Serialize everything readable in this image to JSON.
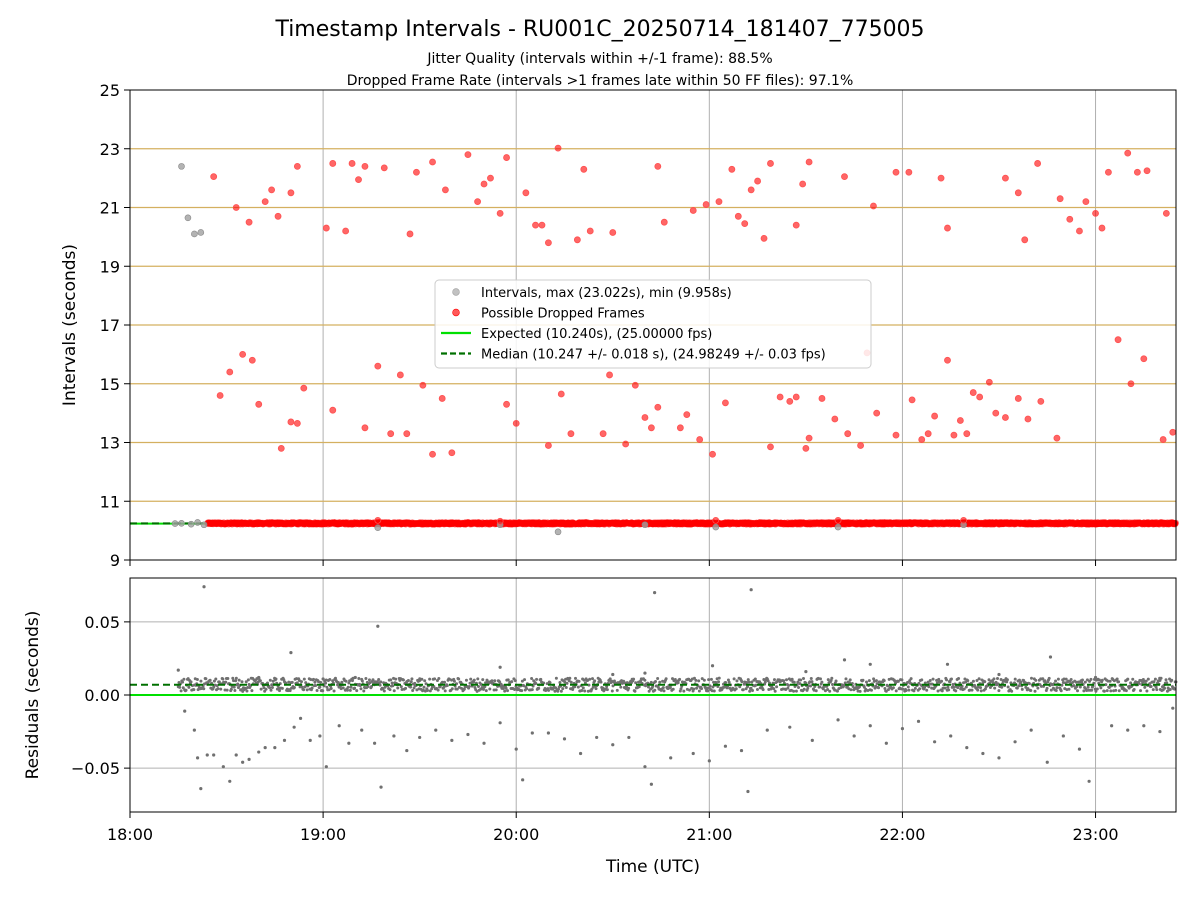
{
  "header": {
    "title": "Timestamp Intervals - RU001C_20250714_181407_775005",
    "subtitle_1": "Jitter Quality (intervals within +/-1 frame): 88.5%",
    "subtitle_2": "Dropped Frame Rate (intervals >1 frames late within 50 FF files): 97.1%"
  },
  "colors": {
    "intervals": "#a0a0a0",
    "dropped": "#ff0000",
    "expected": "#00e000",
    "median": "#007000",
    "residual_points": "#707070",
    "frame_lines": "#d4b060",
    "grid": "#b0b0b0"
  },
  "chart_data": [
    {
      "type": "scatter",
      "id": "intervals",
      "xlabel": "",
      "ylabel": "Intervals (seconds)",
      "xlim": [
        "18:00",
        "23:25"
      ],
      "ylim": [
        9,
        25
      ],
      "yticks": [
        "9",
        "11",
        "13",
        "15",
        "17",
        "19",
        "21",
        "23",
        "25"
      ],
      "grid": true,
      "frame_multiple_lines": [
        11,
        13,
        15,
        17,
        19,
        21,
        23
      ],
      "legend_position": "center",
      "legend": [
        {
          "kind": "marker",
          "label": "Intervals, max (23.022s), min (9.958s)",
          "color": "#a0a0a0"
        },
        {
          "kind": "marker",
          "label": "Possible Dropped Frames",
          "color": "#ff0000"
        },
        {
          "kind": "line",
          "label": "Expected (10.240s), (25.00000 fps)",
          "color": "#00e000"
        },
        {
          "kind": "dashed",
          "label": "Median (10.247 +/- 0.018 s), (24.98249 +/- 0.03 fps)",
          "color": "#007000"
        }
      ],
      "expected_interval": 10.24,
      "median_interval": 10.247,
      "baseline_span": {
        "start": "18:24",
        "end": "23:25",
        "value": 10.247
      },
      "gray_points": [
        [
          "18:16",
          22.4
        ],
        [
          "18:18",
          20.65
        ],
        [
          "18:20",
          20.1
        ],
        [
          "18:22",
          20.15
        ],
        [
          "18:14",
          10.24
        ],
        [
          "18:16",
          10.25
        ],
        [
          "18:19",
          10.22
        ],
        [
          "18:21",
          10.28
        ],
        [
          "18:23",
          10.2
        ],
        [
          "19:17",
          10.1
        ],
        [
          "20:13",
          9.958
        ],
        [
          "21:02",
          10.12
        ],
        [
          "21:40",
          10.12
        ],
        [
          "22:19",
          10.2
        ],
        [
          "19:55",
          10.2
        ],
        [
          "20:40",
          10.2
        ]
      ],
      "red_points": [
        [
          "18:26",
          22.05
        ],
        [
          "18:33",
          21.0
        ],
        [
          "18:37",
          20.5
        ],
        [
          "18:42",
          21.2
        ],
        [
          "18:44",
          21.6
        ],
        [
          "18:46",
          20.7
        ],
        [
          "18:50",
          21.5
        ],
        [
          "18:52",
          22.4
        ],
        [
          "19:01",
          20.3
        ],
        [
          "19:03",
          22.5
        ],
        [
          "19:07",
          20.2
        ],
        [
          "19:09",
          22.5
        ],
        [
          "19:11",
          21.95
        ],
        [
          "19:13",
          22.4
        ],
        [
          "19:19",
          22.35
        ],
        [
          "19:27",
          20.1
        ],
        [
          "19:29",
          22.2
        ],
        [
          "19:34",
          22.55
        ],
        [
          "19:38",
          21.6
        ],
        [
          "19:45",
          22.8
        ],
        [
          "19:48",
          21.2
        ],
        [
          "19:50",
          21.8
        ],
        [
          "19:52",
          22.0
        ],
        [
          "19:55",
          20.8
        ],
        [
          "19:57",
          22.7
        ],
        [
          "20:03",
          21.5
        ],
        [
          "20:06",
          20.4
        ],
        [
          "20:08",
          20.4
        ],
        [
          "20:10",
          19.8
        ],
        [
          "20:13",
          23.022
        ],
        [
          "20:19",
          19.9
        ],
        [
          "20:21",
          22.3
        ],
        [
          "20:23",
          20.2
        ],
        [
          "20:30",
          20.15
        ],
        [
          "20:44",
          22.4
        ],
        [
          "20:46",
          20.5
        ],
        [
          "20:55",
          20.9
        ],
        [
          "20:59",
          21.1
        ],
        [
          "21:03",
          21.2
        ],
        [
          "21:07",
          22.3
        ],
        [
          "21:09",
          20.7
        ],
        [
          "21:11",
          20.45
        ],
        [
          "21:13",
          21.6
        ],
        [
          "21:15",
          21.9
        ],
        [
          "21:17",
          19.95
        ],
        [
          "21:19",
          22.5
        ],
        [
          "21:27",
          20.4
        ],
        [
          "21:29",
          21.8
        ],
        [
          "21:31",
          22.55
        ],
        [
          "21:42",
          22.05
        ],
        [
          "21:51",
          21.05
        ],
        [
          "21:58",
          22.2
        ],
        [
          "22:02",
          22.2
        ],
        [
          "22:12",
          22.0
        ],
        [
          "22:14",
          20.3
        ],
        [
          "22:32",
          22.0
        ],
        [
          "22:36",
          21.5
        ],
        [
          "22:38",
          19.9
        ],
        [
          "22:42",
          22.5
        ],
        [
          "22:49",
          21.3
        ],
        [
          "22:52",
          20.6
        ],
        [
          "22:55",
          20.2
        ],
        [
          "22:57",
          21.2
        ],
        [
          "23:00",
          20.8
        ],
        [
          "23:02",
          20.3
        ],
        [
          "23:04",
          22.2
        ],
        [
          "23:10",
          22.85
        ],
        [
          "23:13",
          22.2
        ],
        [
          "23:16",
          22.25
        ],
        [
          "23:22",
          20.8
        ],
        [
          "23:07",
          16.5
        ],
        [
          "18:28",
          14.6
        ],
        [
          "18:31",
          15.4
        ],
        [
          "18:35",
          16.0
        ],
        [
          "18:38",
          15.8
        ],
        [
          "18:40",
          14.3
        ],
        [
          "18:47",
          12.8
        ],
        [
          "18:50",
          13.7
        ],
        [
          "18:52",
          13.65
        ],
        [
          "18:54",
          14.85
        ],
        [
          "19:03",
          14.1
        ],
        [
          "19:13",
          13.5
        ],
        [
          "19:17",
          15.6
        ],
        [
          "19:21",
          13.3
        ],
        [
          "19:24",
          15.3
        ],
        [
          "19:26",
          13.3
        ],
        [
          "19:31",
          14.95
        ],
        [
          "19:34",
          12.6
        ],
        [
          "19:37",
          14.5
        ],
        [
          "19:40",
          12.65
        ],
        [
          "19:57",
          14.3
        ],
        [
          "20:00",
          13.65
        ],
        [
          "20:10",
          12.9
        ],
        [
          "20:14",
          14.65
        ],
        [
          "20:17",
          13.3
        ],
        [
          "20:27",
          13.3
        ],
        [
          "20:29",
          15.3
        ],
        [
          "20:34",
          12.95
        ],
        [
          "20:37",
          14.95
        ],
        [
          "20:40",
          13.85
        ],
        [
          "20:42",
          13.5
        ],
        [
          "20:44",
          14.2
        ],
        [
          "20:51",
          13.5
        ],
        [
          "20:53",
          13.95
        ],
        [
          "20:57",
          13.1
        ],
        [
          "21:01",
          12.6
        ],
        [
          "21:05",
          14.35
        ],
        [
          "21:19",
          12.85
        ],
        [
          "21:22",
          14.55
        ],
        [
          "21:25",
          14.4
        ],
        [
          "21:27",
          14.55
        ],
        [
          "21:30",
          12.8
        ],
        [
          "21:31",
          13.15
        ],
        [
          "21:35",
          14.5
        ],
        [
          "21:39",
          13.8
        ],
        [
          "21:43",
          13.3
        ],
        [
          "21:47",
          12.9
        ],
        [
          "21:49",
          16.05
        ],
        [
          "21:52",
          14.0
        ],
        [
          "21:58",
          13.25
        ],
        [
          "22:03",
          14.45
        ],
        [
          "22:06",
          13.1
        ],
        [
          "22:08",
          13.3
        ],
        [
          "22:10",
          13.9
        ],
        [
          "22:14",
          15.8
        ],
        [
          "22:16",
          13.25
        ],
        [
          "22:18",
          13.75
        ],
        [
          "22:20",
          13.3
        ],
        [
          "22:22",
          14.7
        ],
        [
          "22:24",
          14.55
        ],
        [
          "22:27",
          15.05
        ],
        [
          "22:29",
          14.0
        ],
        [
          "22:32",
          13.85
        ],
        [
          "22:36",
          14.5
        ],
        [
          "22:39",
          13.8
        ],
        [
          "22:43",
          14.4
        ],
        [
          "22:48",
          13.15
        ],
        [
          "23:11",
          15.0
        ],
        [
          "23:15",
          15.85
        ],
        [
          "23:21",
          13.1
        ],
        [
          "23:24",
          13.35
        ],
        [
          "19:17",
          10.35
        ],
        [
          "19:55",
          10.32
        ],
        [
          "21:02",
          10.35
        ],
        [
          "21:40",
          10.35
        ],
        [
          "22:19",
          10.35
        ]
      ]
    },
    {
      "type": "scatter",
      "id": "residuals",
      "xlabel": "Time (UTC)",
      "ylabel": "Residuals (seconds)",
      "xlim": [
        "18:00",
        "23:25"
      ],
      "ylim": [
        -0.08,
        0.08
      ],
      "yticks": [
        "−0.05",
        "0.00",
        "0.05"
      ],
      "xticks": [
        "18:00",
        "19:00",
        "20:00",
        "21:00",
        "22:00",
        "23:00"
      ],
      "grid": true,
      "expected_residual": 0.0,
      "median_residual": 0.007,
      "points": [
        [
          "18:15",
          0.017
        ],
        [
          "18:17",
          -0.011
        ],
        [
          "18:20",
          -0.024
        ],
        [
          "18:21",
          -0.043
        ],
        [
          "18:22",
          -0.064
        ],
        [
          "18:23",
          0.074
        ],
        [
          "18:24",
          -0.041
        ],
        [
          "18:26",
          -0.041
        ],
        [
          "18:29",
          -0.049
        ],
        [
          "18:31",
          -0.059
        ],
        [
          "18:33",
          -0.041
        ],
        [
          "18:35",
          -0.046
        ],
        [
          "18:37",
          -0.044
        ],
        [
          "18:40",
          -0.039
        ],
        [
          "18:42",
          -0.036
        ],
        [
          "18:45",
          -0.036
        ],
        [
          "18:48",
          -0.031
        ],
        [
          "18:50",
          0.029
        ],
        [
          "18:51",
          -0.022
        ],
        [
          "18:53",
          -0.016
        ],
        [
          "18:56",
          -0.031
        ],
        [
          "18:59",
          -0.028
        ],
        [
          "19:01",
          -0.049
        ],
        [
          "19:05",
          -0.021
        ],
        [
          "19:08",
          -0.033
        ],
        [
          "19:12",
          -0.024
        ],
        [
          "19:16",
          -0.033
        ],
        [
          "19:17",
          0.047
        ],
        [
          "19:18",
          -0.063
        ],
        [
          "19:22",
          -0.028
        ],
        [
          "19:26",
          -0.038
        ],
        [
          "19:30",
          -0.029
        ],
        [
          "19:35",
          -0.024
        ],
        [
          "19:40",
          -0.031
        ],
        [
          "19:45",
          -0.027
        ],
        [
          "19:50",
          -0.033
        ],
        [
          "19:55",
          -0.019
        ],
        [
          "20:00",
          -0.037
        ],
        [
          "20:02",
          -0.058
        ],
        [
          "20:05",
          -0.026
        ],
        [
          "20:10",
          -0.026
        ],
        [
          "20:15",
          -0.03
        ],
        [
          "20:20",
          -0.04
        ],
        [
          "20:25",
          -0.029
        ],
        [
          "20:30",
          -0.034
        ],
        [
          "20:35",
          -0.029
        ],
        [
          "20:40",
          -0.049
        ],
        [
          "20:42",
          -0.061
        ],
        [
          "20:43",
          0.07
        ],
        [
          "20:48",
          -0.043
        ],
        [
          "20:55",
          -0.04
        ],
        [
          "21:00",
          -0.045
        ],
        [
          "21:05",
          -0.035
        ],
        [
          "21:10",
          -0.038
        ],
        [
          "21:12",
          -0.066
        ],
        [
          "21:13",
          0.072
        ],
        [
          "21:18",
          -0.024
        ],
        [
          "21:25",
          -0.022
        ],
        [
          "21:32",
          -0.031
        ],
        [
          "21:40",
          -0.017
        ],
        [
          "21:45",
          -0.028
        ],
        [
          "21:50",
          -0.021
        ],
        [
          "21:55",
          -0.033
        ],
        [
          "22:00",
          -0.023
        ],
        [
          "22:05",
          -0.018
        ],
        [
          "22:10",
          -0.032
        ],
        [
          "22:15",
          -0.028
        ],
        [
          "22:20",
          -0.036
        ],
        [
          "22:25",
          -0.04
        ],
        [
          "22:30",
          -0.043
        ],
        [
          "22:35",
          -0.032
        ],
        [
          "22:40",
          -0.024
        ],
        [
          "22:45",
          -0.046
        ],
        [
          "22:50",
          -0.028
        ],
        [
          "22:55",
          -0.037
        ],
        [
          "22:58",
          -0.059
        ],
        [
          "23:05",
          -0.021
        ],
        [
          "23:10",
          -0.024
        ],
        [
          "23:15",
          -0.021
        ],
        [
          "23:20",
          -0.025
        ],
        [
          "23:24",
          -0.009
        ],
        [
          "18:40",
          0.012
        ],
        [
          "19:00",
          0.011
        ],
        [
          "19:10",
          0.012
        ],
        [
          "19:30",
          0.01
        ],
        [
          "19:55",
          0.019
        ],
        [
          "20:30",
          0.014
        ],
        [
          "20:40",
          0.015
        ],
        [
          "21:01",
          0.02
        ],
        [
          "21:30",
          0.016
        ],
        [
          "21:42",
          0.024
        ],
        [
          "21:50",
          0.021
        ],
        [
          "22:14",
          0.021
        ],
        [
          "22:30",
          0.014
        ],
        [
          "22:46",
          0.026
        ],
        [
          "23:00",
          0.012
        ],
        [
          "23:20",
          0.01
        ]
      ]
    }
  ]
}
